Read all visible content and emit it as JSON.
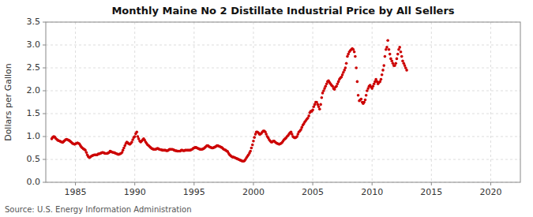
{
  "chart_data": {
    "type": "scatter",
    "title": "Monthly Maine No 2 Distillate Industrial Price by All Sellers",
    "ylabel": "Dollars per Gallon",
    "annotations": [
      "Source: U.S. Energy Information Administration"
    ],
    "color": "#cc0000",
    "grid": true,
    "xlim": [
      1982.5,
      2022.5
    ],
    "ylim": [
      0.0,
      3.5
    ],
    "xticks": [
      1985,
      1990,
      1995,
      2000,
      2005,
      2010,
      2015,
      2020
    ],
    "yticks": [
      {
        "value": 0.0,
        "label": "0.0"
      },
      0.5,
      {
        "value": 1.0,
        "label": "1.0"
      },
      1.5,
      {
        "value": 2.0,
        "label": "2.0"
      },
      2.5,
      {
        "value": 3.0,
        "label": "3.0"
      },
      3.5
    ],
    "x": [
      1983.0,
      1983.08,
      1983.17,
      1983.25,
      1983.33,
      1983.42,
      1983.5,
      1983.58,
      1983.67,
      1983.75,
      1983.83,
      1983.92,
      1984.0,
      1984.08,
      1984.17,
      1984.25,
      1984.33,
      1984.42,
      1984.5,
      1984.58,
      1984.67,
      1984.75,
      1984.83,
      1984.92,
      1985.0,
      1985.08,
      1985.17,
      1985.25,
      1985.33,
      1985.42,
      1985.5,
      1985.58,
      1985.67,
      1985.75,
      1985.83,
      1985.92,
      1986.0,
      1986.08,
      1986.17,
      1986.25,
      1986.33,
      1986.42,
      1986.5,
      1986.58,
      1986.67,
      1986.75,
      1986.83,
      1986.92,
      1987.0,
      1987.08,
      1987.17,
      1987.25,
      1987.33,
      1987.42,
      1987.5,
      1987.58,
      1987.67,
      1987.75,
      1987.83,
      1987.92,
      1988.0,
      1988.08,
      1988.17,
      1988.25,
      1988.33,
      1988.42,
      1988.5,
      1988.58,
      1988.67,
      1988.75,
      1988.83,
      1988.92,
      1989.0,
      1989.08,
      1989.17,
      1989.25,
      1989.33,
      1989.42,
      1989.5,
      1989.58,
      1989.67,
      1989.75,
      1989.83,
      1989.92,
      1990.0,
      1990.08,
      1990.17,
      1990.25,
      1990.33,
      1990.42,
      1990.5,
      1990.58,
      1990.67,
      1990.75,
      1990.83,
      1990.92,
      1991.0,
      1991.08,
      1991.17,
      1991.25,
      1991.33,
      1991.42,
      1991.5,
      1991.58,
      1991.67,
      1991.75,
      1991.83,
      1991.92,
      1992.0,
      1992.08,
      1992.17,
      1992.25,
      1992.33,
      1992.42,
      1992.5,
      1992.58,
      1992.67,
      1992.75,
      1992.83,
      1992.92,
      1993.0,
      1993.08,
      1993.17,
      1993.25,
      1993.33,
      1993.42,
      1993.5,
      1993.58,
      1993.67,
      1993.75,
      1993.83,
      1993.92,
      1994.0,
      1994.08,
      1994.17,
      1994.25,
      1994.33,
      1994.42,
      1994.5,
      1994.58,
      1994.67,
      1994.75,
      1994.83,
      1994.92,
      1995.0,
      1995.08,
      1995.17,
      1995.25,
      1995.33,
      1995.42,
      1995.5,
      1995.58,
      1995.67,
      1995.75,
      1995.83,
      1995.92,
      1996.0,
      1996.08,
      1996.17,
      1996.25,
      1996.33,
      1996.42,
      1996.5,
      1996.58,
      1996.67,
      1996.75,
      1996.83,
      1996.92,
      1997.0,
      1997.08,
      1997.17,
      1997.25,
      1997.33,
      1997.42,
      1997.5,
      1997.58,
      1997.67,
      1997.75,
      1997.83,
      1997.92,
      1998.0,
      1998.08,
      1998.17,
      1998.25,
      1998.33,
      1998.42,
      1998.5,
      1998.58,
      1998.67,
      1998.75,
      1998.83,
      1998.92,
      1999.0,
      1999.08,
      1999.17,
      1999.25,
      1999.33,
      1999.42,
      1999.5,
      1999.58,
      1999.67,
      1999.75,
      1999.83,
      1999.92,
      2000.0,
      2000.08,
      2000.17,
      2000.25,
      2000.33,
      2000.42,
      2000.5,
      2000.58,
      2000.67,
      2000.75,
      2000.83,
      2000.92,
      2001.0,
      2001.08,
      2001.17,
      2001.25,
      2001.33,
      2001.42,
      2001.5,
      2001.58,
      2001.67,
      2001.75,
      2001.83,
      2001.92,
      2002.0,
      2002.08,
      2002.17,
      2002.25,
      2002.33,
      2002.42,
      2002.5,
      2002.58,
      2002.67,
      2002.75,
      2002.83,
      2002.92,
      2003.0,
      2003.08,
      2003.17,
      2003.25,
      2003.33,
      2003.42,
      2003.5,
      2003.58,
      2003.67,
      2003.75,
      2003.83,
      2003.92,
      2004.0,
      2004.08,
      2004.17,
      2004.25,
      2004.33,
      2004.42,
      2004.5,
      2004.58,
      2004.67,
      2004.75,
      2004.83,
      2004.92,
      2005.0,
      2005.08,
      2005.17,
      2005.25,
      2005.33,
      2005.42,
      2005.5,
      2005.58,
      2005.67,
      2005.75,
      2005.83,
      2005.92,
      2006.0,
      2006.08,
      2006.17,
      2006.25,
      2006.33,
      2006.42,
      2006.5,
      2006.58,
      2006.67,
      2006.75,
      2006.83,
      2006.92,
      2007.0,
      2007.08,
      2007.17,
      2007.25,
      2007.33,
      2007.42,
      2007.5,
      2007.58,
      2007.67,
      2007.75,
      2007.83,
      2007.92,
      2008.0,
      2008.08,
      2008.17,
      2008.25,
      2008.33,
      2008.42,
      2008.5,
      2008.58,
      2008.67,
      2008.75,
      2008.83,
      2008.92,
      2009.0,
      2009.08,
      2009.17,
      2009.25,
      2009.33,
      2009.42,
      2009.5,
      2009.58,
      2009.67,
      2009.75,
      2009.83,
      2009.92,
      2010.0,
      2010.08,
      2010.17,
      2010.25,
      2010.33,
      2010.42,
      2010.5,
      2010.58,
      2010.67,
      2010.75,
      2010.83,
      2010.92,
      2011.0,
      2011.08,
      2011.17,
      2011.25,
      2011.33,
      2011.42,
      2011.5,
      2011.58,
      2011.67,
      2011.75,
      2011.83,
      2011.92,
      2012.0,
      2012.08,
      2012.17,
      2012.25,
      2012.33,
      2012.42,
      2012.5,
      2012.58,
      2012.67,
      2012.75,
      2012.83,
      2012.92
    ],
    "values": [
      0.95,
      0.98,
      1.0,
      0.99,
      0.96,
      0.94,
      0.92,
      0.91,
      0.9,
      0.89,
      0.88,
      0.87,
      0.89,
      0.91,
      0.93,
      0.94,
      0.93,
      0.92,
      0.91,
      0.89,
      0.87,
      0.85,
      0.84,
      0.83,
      0.84,
      0.85,
      0.86,
      0.85,
      0.84,
      0.8,
      0.77,
      0.75,
      0.73,
      0.72,
      0.7,
      0.65,
      0.6,
      0.56,
      0.54,
      0.55,
      0.57,
      0.58,
      0.59,
      0.6,
      0.6,
      0.6,
      0.6,
      0.62,
      0.62,
      0.63,
      0.64,
      0.65,
      0.65,
      0.64,
      0.63,
      0.63,
      0.63,
      0.64,
      0.65,
      0.68,
      0.67,
      0.66,
      0.65,
      0.65,
      0.64,
      0.63,
      0.62,
      0.61,
      0.61,
      0.62,
      0.63,
      0.65,
      0.7,
      0.75,
      0.8,
      0.85,
      0.88,
      0.86,
      0.84,
      0.83,
      0.85,
      0.88,
      0.93,
      0.98,
      1.0,
      1.06,
      1.1,
      1.0,
      0.95,
      0.9,
      0.88,
      0.9,
      0.93,
      0.95,
      0.92,
      0.88,
      0.85,
      0.82,
      0.8,
      0.78,
      0.76,
      0.74,
      0.73,
      0.72,
      0.72,
      0.72,
      0.73,
      0.74,
      0.73,
      0.72,
      0.71,
      0.71,
      0.7,
      0.7,
      0.7,
      0.7,
      0.69,
      0.69,
      0.7,
      0.72,
      0.72,
      0.72,
      0.72,
      0.71,
      0.7,
      0.69,
      0.69,
      0.68,
      0.68,
      0.68,
      0.68,
      0.7,
      0.7,
      0.69,
      0.69,
      0.7,
      0.7,
      0.7,
      0.7,
      0.7,
      0.7,
      0.71,
      0.72,
      0.74,
      0.75,
      0.76,
      0.76,
      0.75,
      0.74,
      0.73,
      0.72,
      0.72,
      0.72,
      0.73,
      0.74,
      0.76,
      0.78,
      0.8,
      0.8,
      0.78,
      0.77,
      0.76,
      0.75,
      0.75,
      0.76,
      0.77,
      0.78,
      0.8,
      0.8,
      0.79,
      0.78,
      0.77,
      0.76,
      0.74,
      0.72,
      0.71,
      0.7,
      0.68,
      0.67,
      0.63,
      0.6,
      0.58,
      0.56,
      0.55,
      0.55,
      0.54,
      0.53,
      0.52,
      0.51,
      0.5,
      0.49,
      0.48,
      0.47,
      0.46,
      0.46,
      0.47,
      0.5,
      0.54,
      0.57,
      0.6,
      0.64,
      0.68,
      0.75,
      0.82,
      0.9,
      0.98,
      1.05,
      1.1,
      1.1,
      1.08,
      1.05,
      1.05,
      1.07,
      1.1,
      1.12,
      1.12,
      1.1,
      1.05,
      1.0,
      0.97,
      0.93,
      0.9,
      0.88,
      0.88,
      0.9,
      0.9,
      0.88,
      0.86,
      0.85,
      0.84,
      0.83,
      0.84,
      0.85,
      0.87,
      0.9,
      0.93,
      0.95,
      0.97,
      1.0,
      1.02,
      1.05,
      1.08,
      1.1,
      1.05,
      1.0,
      0.98,
      0.97,
      0.98,
      1.0,
      1.05,
      1.1,
      1.12,
      1.15,
      1.2,
      1.25,
      1.28,
      1.32,
      1.35,
      1.38,
      1.4,
      1.45,
      1.52,
      1.55,
      1.55,
      1.58,
      1.65,
      1.7,
      1.75,
      1.75,
      1.7,
      1.65,
      1.6,
      1.7,
      1.85,
      1.95,
      2.0,
      2.05,
      2.1,
      2.15,
      2.2,
      2.22,
      2.18,
      2.15,
      2.12,
      2.1,
      2.05,
      2.03,
      2.08,
      2.1,
      2.15,
      2.2,
      2.25,
      2.28,
      2.3,
      2.35,
      2.4,
      2.45,
      2.5,
      2.6,
      2.75,
      2.8,
      2.85,
      2.88,
      2.9,
      2.92,
      2.9,
      2.85,
      2.75,
      2.5,
      2.2,
      1.9,
      1.78,
      1.8,
      1.82,
      1.75,
      1.72,
      1.75,
      1.8,
      1.9,
      2.0,
      2.05,
      2.1,
      2.12,
      2.08,
      2.05,
      2.1,
      2.15,
      2.2,
      2.25,
      2.2,
      2.15,
      2.18,
      2.2,
      2.25,
      2.35,
      2.45,
      2.55,
      2.75,
      2.9,
      2.95,
      3.1,
      2.9,
      2.8,
      2.7,
      2.65,
      2.6,
      2.55,
      2.55,
      2.6,
      2.7,
      2.8,
      2.9,
      2.95,
      2.85,
      2.75,
      2.65,
      2.6,
      2.55,
      2.5,
      2.45
    ]
  }
}
